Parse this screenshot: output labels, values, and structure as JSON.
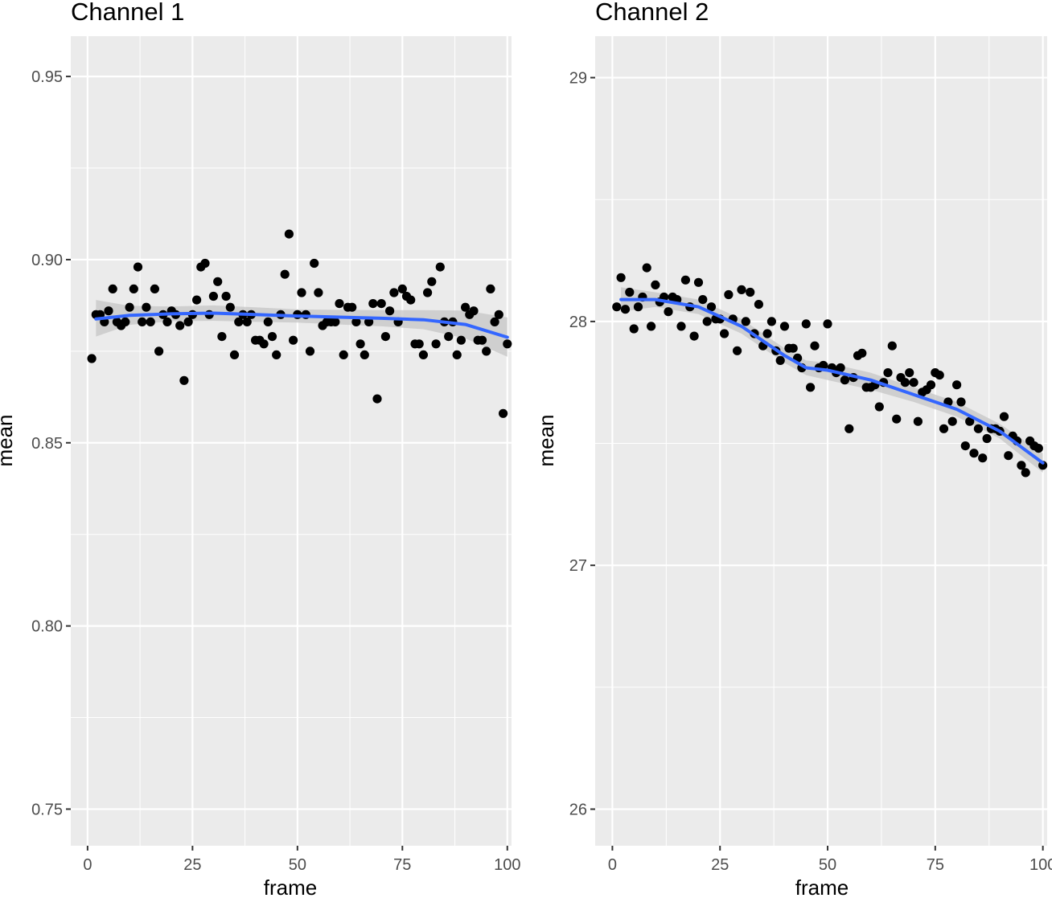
{
  "chart_data": [
    {
      "type": "scatter",
      "title": "Channel 1",
      "xlabel": "frame",
      "ylabel": "mean",
      "xlim": [
        -4,
        101
      ],
      "ylim": [
        0.74,
        0.961
      ],
      "x_ticks": [
        0,
        25,
        50,
        75,
        100
      ],
      "x_tick_labels": [
        "0",
        "25",
        "50",
        "75",
        "100"
      ],
      "y_ticks": [
        0.75,
        0.8,
        0.85,
        0.9,
        0.95
      ],
      "y_tick_labels": [
        "0.75",
        "0.80",
        "0.85",
        "0.90",
        "0.95"
      ],
      "grid": true,
      "colors": {
        "panel": "#EBEBEB",
        "grid": "#FFFFFF",
        "points": "#000000",
        "smooth": "#3366FF",
        "band": "#C6C6C6"
      },
      "series": [
        {
          "kind": "points",
          "x": [
            1,
            2,
            3,
            4,
            5,
            6,
            7,
            8,
            9,
            10,
            11,
            12,
            13,
            14,
            15,
            16,
            17,
            18,
            19,
            20,
            21,
            22,
            23,
            24,
            25,
            26,
            27,
            28,
            29,
            30,
            31,
            32,
            33,
            34,
            35,
            36,
            37,
            38,
            39,
            40,
            41,
            42,
            43,
            44,
            45,
            46,
            47,
            48,
            49,
            50,
            51,
            52,
            53,
            54,
            55,
            56,
            57,
            58,
            59,
            60,
            61,
            62,
            63,
            64,
            65,
            66,
            67,
            68,
            69,
            70,
            71,
            72,
            73,
            74,
            75,
            76,
            77,
            78,
            79,
            80,
            81,
            82,
            83,
            84,
            85,
            86,
            87,
            88,
            89,
            90,
            91,
            92,
            93,
            94,
            95,
            96,
            97,
            98,
            99,
            100
          ],
          "y": [
            0.873,
            0.885,
            0.885,
            0.883,
            0.886,
            0.892,
            0.883,
            0.882,
            0.883,
            0.887,
            0.892,
            0.898,
            0.883,
            0.887,
            0.883,
            0.892,
            0.875,
            0.885,
            0.883,
            0.886,
            0.885,
            0.882,
            0.867,
            0.883,
            0.885,
            0.889,
            0.898,
            0.899,
            0.885,
            0.89,
            0.894,
            0.879,
            0.89,
            0.887,
            0.874,
            0.883,
            0.885,
            0.883,
            0.885,
            0.878,
            0.878,
            0.877,
            0.883,
            0.879,
            0.874,
            0.885,
            0.896,
            0.907,
            0.878,
            0.885,
            0.891,
            0.885,
            0.875,
            0.899,
            0.891,
            0.882,
            0.883,
            0.883,
            0.883,
            0.888,
            0.874,
            0.887,
            0.887,
            0.883,
            0.877,
            0.874,
            0.883,
            0.888,
            0.862,
            0.888,
            0.879,
            0.886,
            0.891,
            0.883,
            0.892,
            0.89,
            0.889,
            0.877,
            0.877,
            0.874,
            0.891,
            0.894,
            0.877,
            0.898,
            0.883,
            0.879,
            0.883,
            0.874,
            0.878,
            0.887,
            0.885,
            0.886,
            0.878,
            0.878,
            0.875,
            0.892,
            0.883,
            0.885,
            0.858,
            0.877
          ]
        },
        {
          "kind": "smooth",
          "x": [
            2,
            10,
            20,
            30,
            40,
            50,
            60,
            70,
            80,
            90,
            100
          ],
          "y": [
            0.8838,
            0.8848,
            0.8852,
            0.8854,
            0.885,
            0.8846,
            0.8843,
            0.884,
            0.8836,
            0.8823,
            0.8788
          ],
          "band_lower": [
            0.879,
            0.8822,
            0.8832,
            0.8833,
            0.883,
            0.8828,
            0.8823,
            0.8818,
            0.881,
            0.8785,
            0.8735
          ],
          "band_upper": [
            0.889,
            0.8874,
            0.8872,
            0.8875,
            0.887,
            0.8864,
            0.8863,
            0.8862,
            0.8862,
            0.8861,
            0.8842
          ]
        }
      ]
    },
    {
      "type": "scatter",
      "title": "Channel 2",
      "xlabel": "frame",
      "ylabel": "mean",
      "xlim": [
        -4,
        101
      ],
      "ylim": [
        25.85,
        29.17
      ],
      "x_ticks": [
        0,
        25,
        50,
        75,
        100
      ],
      "x_tick_labels": [
        "0",
        "25",
        "50",
        "75",
        "100"
      ],
      "y_ticks": [
        26,
        27,
        28,
        29
      ],
      "y_tick_labels": [
        "26",
        "27",
        "28",
        "29"
      ],
      "grid": true,
      "colors": {
        "panel": "#EBEBEB",
        "grid": "#FFFFFF",
        "points": "#000000",
        "smooth": "#3366FF",
        "band": "#C6C6C6"
      },
      "series": [
        {
          "kind": "points",
          "x": [
            1,
            2,
            3,
            4,
            5,
            6,
            7,
            8,
            9,
            10,
            11,
            12,
            13,
            14,
            15,
            16,
            17,
            18,
            19,
            20,
            21,
            22,
            23,
            24,
            25,
            26,
            27,
            28,
            29,
            30,
            31,
            32,
            33,
            34,
            35,
            36,
            37,
            38,
            39,
            40,
            41,
            42,
            43,
            44,
            45,
            46,
            47,
            48,
            49,
            50,
            51,
            52,
            53,
            54,
            55,
            56,
            57,
            58,
            59,
            60,
            61,
            62,
            63,
            64,
            65,
            66,
            67,
            68,
            69,
            70,
            71,
            72,
            73,
            74,
            75,
            76,
            77,
            78,
            79,
            80,
            81,
            82,
            83,
            84,
            85,
            86,
            87,
            88,
            89,
            90,
            91,
            92,
            93,
            94,
            95,
            96,
            97,
            98,
            99,
            100
          ],
          "y": [
            28.06,
            28.18,
            28.05,
            28.12,
            27.97,
            28.06,
            28.1,
            28.22,
            27.98,
            28.15,
            28.08,
            28.1,
            28.04,
            28.1,
            28.09,
            27.98,
            28.17,
            28.06,
            27.94,
            28.16,
            28.09,
            28.0,
            28.06,
            28.01,
            28.01,
            27.95,
            28.11,
            28.01,
            27.88,
            28.13,
            28.0,
            28.12,
            27.95,
            28.07,
            27.9,
            27.95,
            28.0,
            27.88,
            27.84,
            27.98,
            27.89,
            27.89,
            27.85,
            27.81,
            27.99,
            27.73,
            27.9,
            27.81,
            27.82,
            27.99,
            27.81,
            27.79,
            27.81,
            27.76,
            27.56,
            27.77,
            27.86,
            27.87,
            27.73,
            27.73,
            27.74,
            27.65,
            27.75,
            27.79,
            27.9,
            27.6,
            27.77,
            27.75,
            27.79,
            27.75,
            27.59,
            27.71,
            27.72,
            27.74,
            27.79,
            27.78,
            27.56,
            27.67,
            27.59,
            27.74,
            27.67,
            27.49,
            27.59,
            27.46,
            27.56,
            27.44,
            27.52,
            27.56,
            27.56,
            27.55,
            27.61,
            27.45,
            27.53,
            27.51,
            27.41,
            27.38,
            27.51,
            27.49,
            27.48,
            27.41
          ]
        },
        {
          "kind": "smooth",
          "x": [
            2,
            10,
            20,
            30,
            40,
            45,
            50,
            60,
            70,
            80,
            90,
            100
          ],
          "y": [
            28.09,
            28.09,
            28.06,
            27.98,
            27.86,
            27.81,
            27.8,
            27.76,
            27.7,
            27.64,
            27.55,
            27.42
          ],
          "band_lower": [
            28.04,
            28.06,
            28.03,
            27.95,
            27.83,
            27.78,
            27.76,
            27.72,
            27.67,
            27.61,
            27.52,
            27.38
          ],
          "band_upper": [
            28.14,
            28.12,
            28.09,
            28.01,
            27.89,
            27.84,
            27.83,
            27.79,
            27.73,
            27.67,
            27.58,
            27.46
          ]
        }
      ]
    }
  ]
}
